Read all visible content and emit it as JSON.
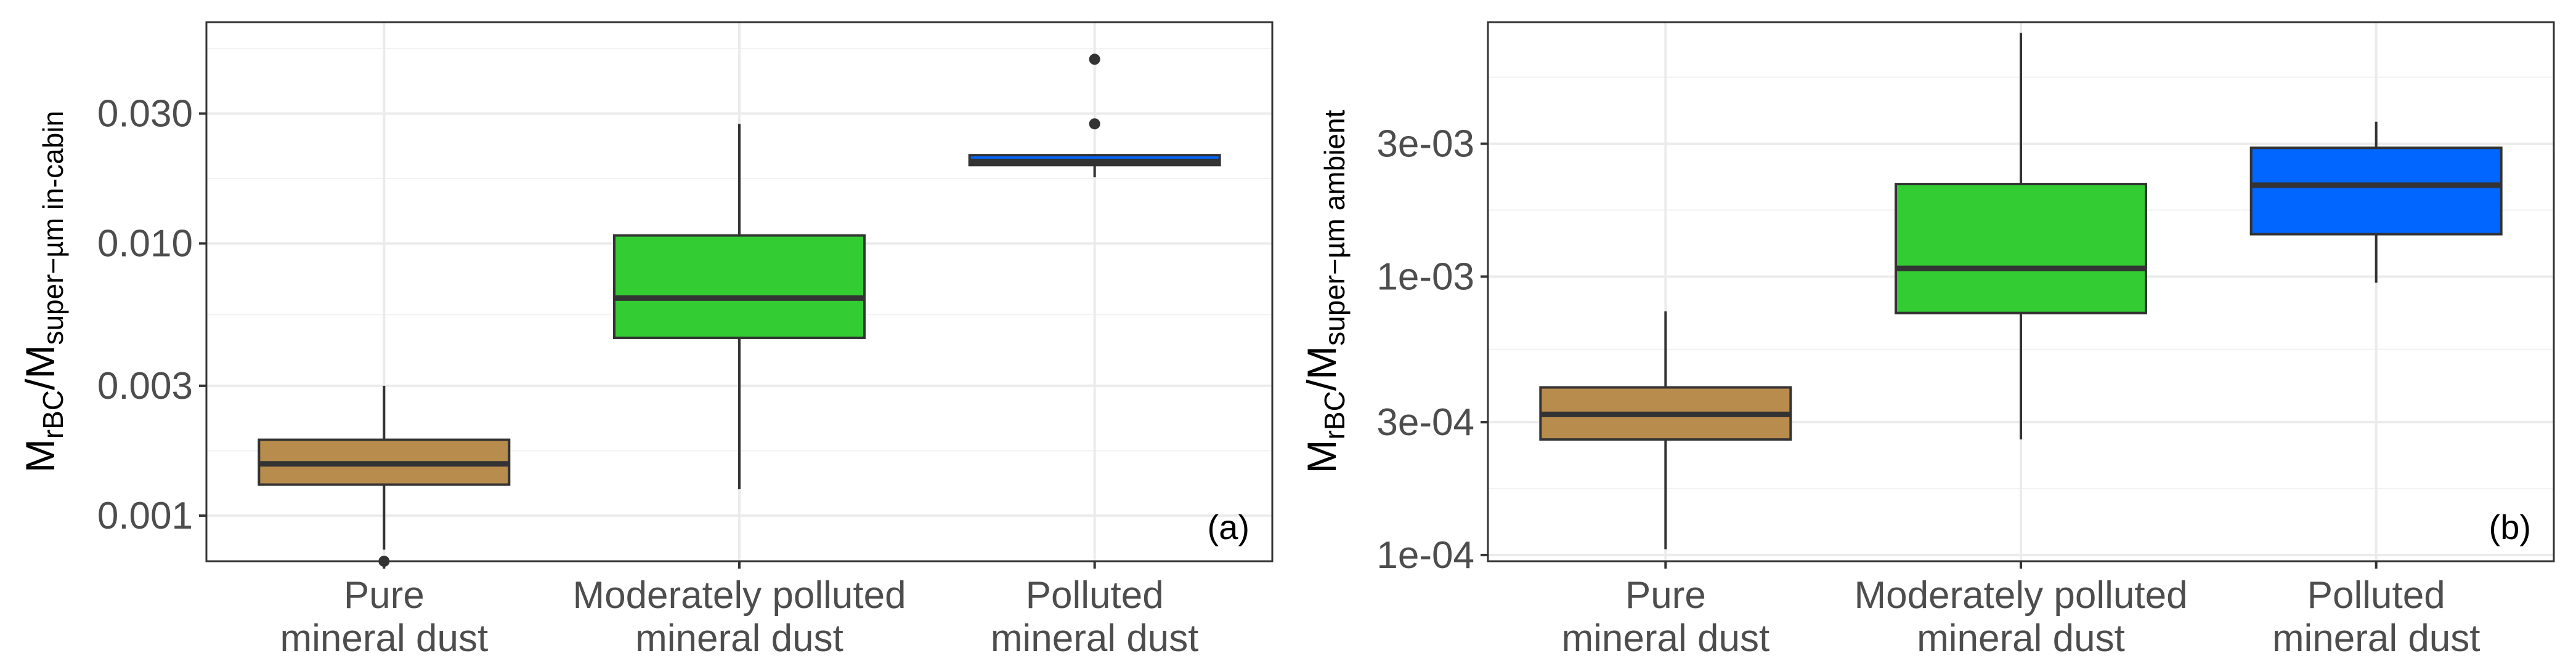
{
  "chart_data": [
    {
      "type": "box",
      "panel_label": "(a)",
      "ylabel": {
        "main": "M",
        "sub1": "rBC",
        "slash": "/M",
        "sub2": "super−µm in-cabin"
      },
      "yscale": "log",
      "ylim": [
        0.00068,
        0.065
      ],
      "yticks": [
        0.001,
        0.003,
        0.01,
        0.03
      ],
      "ytick_labels": [
        "0.001",
        "0.003",
        "0.010",
        "0.030"
      ],
      "grid": true,
      "categories": [
        {
          "line1": "Pure",
          "line2": "mineral dust"
        },
        {
          "line1": "Moderately polluted",
          "line2": "mineral dust"
        },
        {
          "line1": "Polluted",
          "line2": "mineral dust"
        }
      ],
      "boxes": [
        {
          "color": "#b88c4c",
          "whisker_low": 0.00075,
          "q1": 0.0013,
          "median": 0.00155,
          "q3": 0.0019,
          "whisker_high": 0.003,
          "outliers": [
            0.00068
          ]
        },
        {
          "color": "#33cc33",
          "whisker_low": 0.00125,
          "q1": 0.0045,
          "median": 0.0063,
          "q3": 0.0107,
          "whisker_high": 0.0275,
          "outliers": []
        },
        {
          "color": "#0066ff",
          "whisker_low": 0.0175,
          "q1": 0.0194,
          "median": 0.02,
          "q3": 0.0211,
          "whisker_high": 0.0213,
          "outliers": [
            0.0275,
            0.0475
          ]
        }
      ]
    },
    {
      "type": "box",
      "panel_label": "(b)",
      "ylabel": {
        "main": "M",
        "sub1": "rBC",
        "slash": "/M",
        "sub2": "super−µm ambient"
      },
      "yscale": "log",
      "ylim": [
        9.5e-05,
        0.0082
      ],
      "yticks": [
        0.0001,
        0.0003,
        0.001,
        0.003
      ],
      "ytick_labels": [
        "1e-04",
        "3e-04",
        "1e-03",
        "3e-03"
      ],
      "grid": true,
      "categories": [
        {
          "line1": "Pure",
          "line2": "mineral dust"
        },
        {
          "line1": "Moderately polluted",
          "line2": "mineral dust"
        },
        {
          "line1": "Polluted",
          "line2": "mineral dust"
        }
      ],
      "boxes": [
        {
          "color": "#b88c4c",
          "whisker_low": 0.000105,
          "q1": 0.00026,
          "median": 0.00032,
          "q3": 0.0004,
          "whisker_high": 0.00075,
          "outliers": []
        },
        {
          "color": "#33cc33",
          "whisker_low": 0.00026,
          "q1": 0.00074,
          "median": 0.00107,
          "q3": 0.00215,
          "whisker_high": 0.0075,
          "outliers": []
        },
        {
          "color": "#0066ff",
          "whisker_low": 0.00095,
          "q1": 0.00142,
          "median": 0.00213,
          "q3": 0.0029,
          "whisker_high": 0.0036,
          "outliers": []
        }
      ]
    }
  ]
}
